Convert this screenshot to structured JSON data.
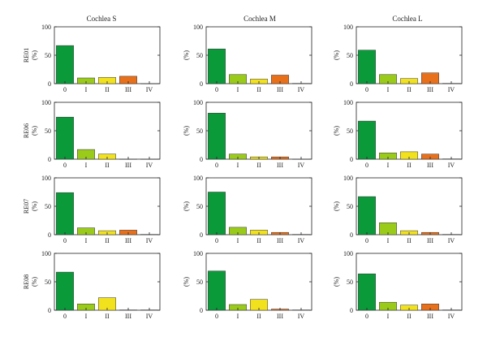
{
  "column_titles": [
    "Cochlea S",
    "Cochlea M",
    "Cochlea L"
  ],
  "row_labels": [
    "RE01",
    "RE06",
    "RE07",
    "RE08"
  ],
  "y_axis_label": "(%)",
  "colors": {
    "0": "#0a9a3a",
    "I": "#9acb1a",
    "II": "#f2e21e",
    "III": "#e8701a",
    "IV": "#b5b5b5",
    "axis": "#222222"
  },
  "chart_data": [
    {
      "type": "bar",
      "row": "RE01",
      "column": "Cochlea S",
      "ylabel": "(%)",
      "ylim": [
        0,
        100
      ],
      "yticks": [
        0,
        50,
        100
      ],
      "categories": [
        "0",
        "I",
        "II",
        "III",
        "IV"
      ],
      "values": [
        67,
        10,
        11,
        13,
        0
      ]
    },
    {
      "type": "bar",
      "row": "RE01",
      "column": "Cochlea M",
      "ylabel": "(%)",
      "ylim": [
        0,
        100
      ],
      "yticks": [
        0,
        50,
        100
      ],
      "categories": [
        "0",
        "I",
        "II",
        "III",
        "IV"
      ],
      "values": [
        61,
        16,
        8,
        15,
        0.5
      ]
    },
    {
      "type": "bar",
      "row": "RE01",
      "column": "Cochlea L",
      "ylabel": "(%)",
      "ylim": [
        0,
        100
      ],
      "yticks": [
        0,
        50,
        100
      ],
      "categories": [
        "0",
        "I",
        "II",
        "III",
        "IV"
      ],
      "values": [
        59,
        16,
        9,
        19,
        0.5
      ]
    },
    {
      "type": "bar",
      "row": "RE06",
      "column": "Cochlea S",
      "ylabel": "(%)",
      "ylim": [
        0,
        100
      ],
      "yticks": [
        0,
        50,
        100
      ],
      "categories": [
        "0",
        "I",
        "II",
        "III",
        "IV"
      ],
      "values": [
        74,
        17,
        9,
        0,
        0
      ]
    },
    {
      "type": "bar",
      "row": "RE06",
      "column": "Cochlea M",
      "ylabel": "(%)",
      "ylim": [
        0,
        100
      ],
      "yticks": [
        0,
        50,
        100
      ],
      "categories": [
        "0",
        "I",
        "II",
        "III",
        "IV"
      ],
      "values": [
        81,
        9,
        4,
        4,
        0
      ]
    },
    {
      "type": "bar",
      "row": "RE06",
      "column": "Cochlea L",
      "ylabel": "(%)",
      "ylim": [
        0,
        100
      ],
      "yticks": [
        0,
        50,
        100
      ],
      "categories": [
        "0",
        "I",
        "II",
        "III",
        "IV"
      ],
      "values": [
        67,
        11,
        13,
        9,
        0.5
      ]
    },
    {
      "type": "bar",
      "row": "RE07",
      "column": "Cochlea S",
      "ylabel": "(%)",
      "ylim": [
        0,
        100
      ],
      "yticks": [
        0,
        50,
        100
      ],
      "categories": [
        "0",
        "I",
        "II",
        "III",
        "IV"
      ],
      "values": [
        74,
        12,
        7,
        8,
        0.5
      ]
    },
    {
      "type": "bar",
      "row": "RE07",
      "column": "Cochlea M",
      "ylabel": "(%)",
      "ylim": [
        0,
        100
      ],
      "yticks": [
        0,
        50,
        100
      ],
      "categories": [
        "0",
        "I",
        "II",
        "III",
        "IV"
      ],
      "values": [
        75,
        13,
        8,
        4,
        0.5
      ]
    },
    {
      "type": "bar",
      "row": "RE07",
      "column": "Cochlea L",
      "ylabel": "(%)",
      "ylim": [
        0,
        100
      ],
      "yticks": [
        0,
        50,
        100
      ],
      "categories": [
        "0",
        "I",
        "II",
        "III",
        "IV"
      ],
      "values": [
        67,
        21,
        7,
        4,
        0.5
      ]
    },
    {
      "type": "bar",
      "row": "RE08",
      "column": "Cochlea S",
      "ylabel": "(%)",
      "ylim": [
        0,
        100
      ],
      "yticks": [
        0,
        50,
        100
      ],
      "categories": [
        "0",
        "I",
        "II",
        "III",
        "IV"
      ],
      "values": [
        67,
        11,
        22,
        0.5,
        0.5
      ]
    },
    {
      "type": "bar",
      "row": "RE08",
      "column": "Cochlea M",
      "ylabel": "(%)",
      "ylim": [
        0,
        100
      ],
      "yticks": [
        0,
        50,
        100
      ],
      "categories": [
        "0",
        "I",
        "II",
        "III",
        "IV"
      ],
      "values": [
        69,
        10,
        19,
        2,
        0.5
      ]
    },
    {
      "type": "bar",
      "row": "RE08",
      "column": "Cochlea L",
      "ylabel": "(%)",
      "ylim": [
        0,
        100
      ],
      "yticks": [
        0,
        50,
        100
      ],
      "categories": [
        "0",
        "I",
        "II",
        "III",
        "IV"
      ],
      "values": [
        64,
        14,
        9,
        11,
        0.5
      ]
    }
  ]
}
